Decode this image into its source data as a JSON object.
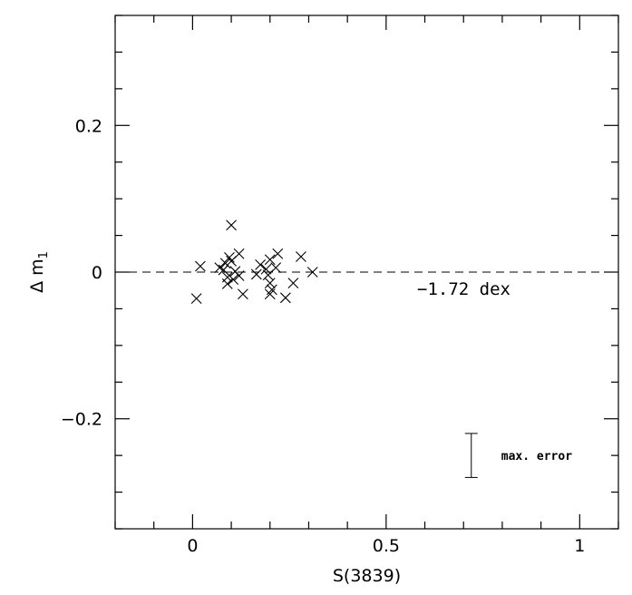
{
  "chart_data": {
    "type": "scatter",
    "xlabel": "S(3839)",
    "ylabel": "Δ m",
    "ylabel_subscript": "1",
    "xlim": [
      -0.2,
      1.1
    ],
    "ylim": [
      -0.35,
      0.35
    ],
    "x_ticks": [
      0,
      0.5,
      1
    ],
    "x_tick_labels": [
      "0",
      "0.5",
      "1"
    ],
    "y_ticks": [
      -0.2,
      0,
      0.2
    ],
    "y_tick_labels": [
      "−0.2",
      "0",
      "0.2"
    ],
    "marker": "x",
    "reference_line": {
      "y": 0,
      "style": "dashed"
    },
    "annotation": "−1.72 dex",
    "error_bar": {
      "label": "max. error",
      "x": 0.72,
      "y_low": -0.28,
      "y_high": -0.22
    },
    "points": [
      {
        "x": 0.01,
        "y": -0.036
      },
      {
        "x": 0.02,
        "y": 0.008
      },
      {
        "x": 0.07,
        "y": 0.006
      },
      {
        "x": 0.08,
        "y": 0.003
      },
      {
        "x": 0.085,
        "y": 0.012
      },
      {
        "x": 0.09,
        "y": -0.007
      },
      {
        "x": 0.09,
        "y": -0.016
      },
      {
        "x": 0.095,
        "y": 0.02
      },
      {
        "x": 0.1,
        "y": 0.064
      },
      {
        "x": 0.1,
        "y": 0.015
      },
      {
        "x": 0.105,
        "y": -0.01
      },
      {
        "x": 0.11,
        "y": 0.001
      },
      {
        "x": 0.12,
        "y": -0.005
      },
      {
        "x": 0.12,
        "y": 0.025
      },
      {
        "x": 0.13,
        "y": -0.03
      },
      {
        "x": 0.165,
        "y": -0.003
      },
      {
        "x": 0.175,
        "y": 0.01
      },
      {
        "x": 0.19,
        "y": 0.004
      },
      {
        "x": 0.195,
        "y": -0.004
      },
      {
        "x": 0.2,
        "y": 0.017
      },
      {
        "x": 0.2,
        "y": -0.015
      },
      {
        "x": 0.2,
        "y": -0.03
      },
      {
        "x": 0.205,
        "y": -0.024
      },
      {
        "x": 0.215,
        "y": 0.006
      },
      {
        "x": 0.22,
        "y": 0.025
      },
      {
        "x": 0.24,
        "y": -0.035
      },
      {
        "x": 0.26,
        "y": -0.015
      },
      {
        "x": 0.28,
        "y": 0.021
      },
      {
        "x": 0.31,
        "y": 0.0
      }
    ]
  }
}
